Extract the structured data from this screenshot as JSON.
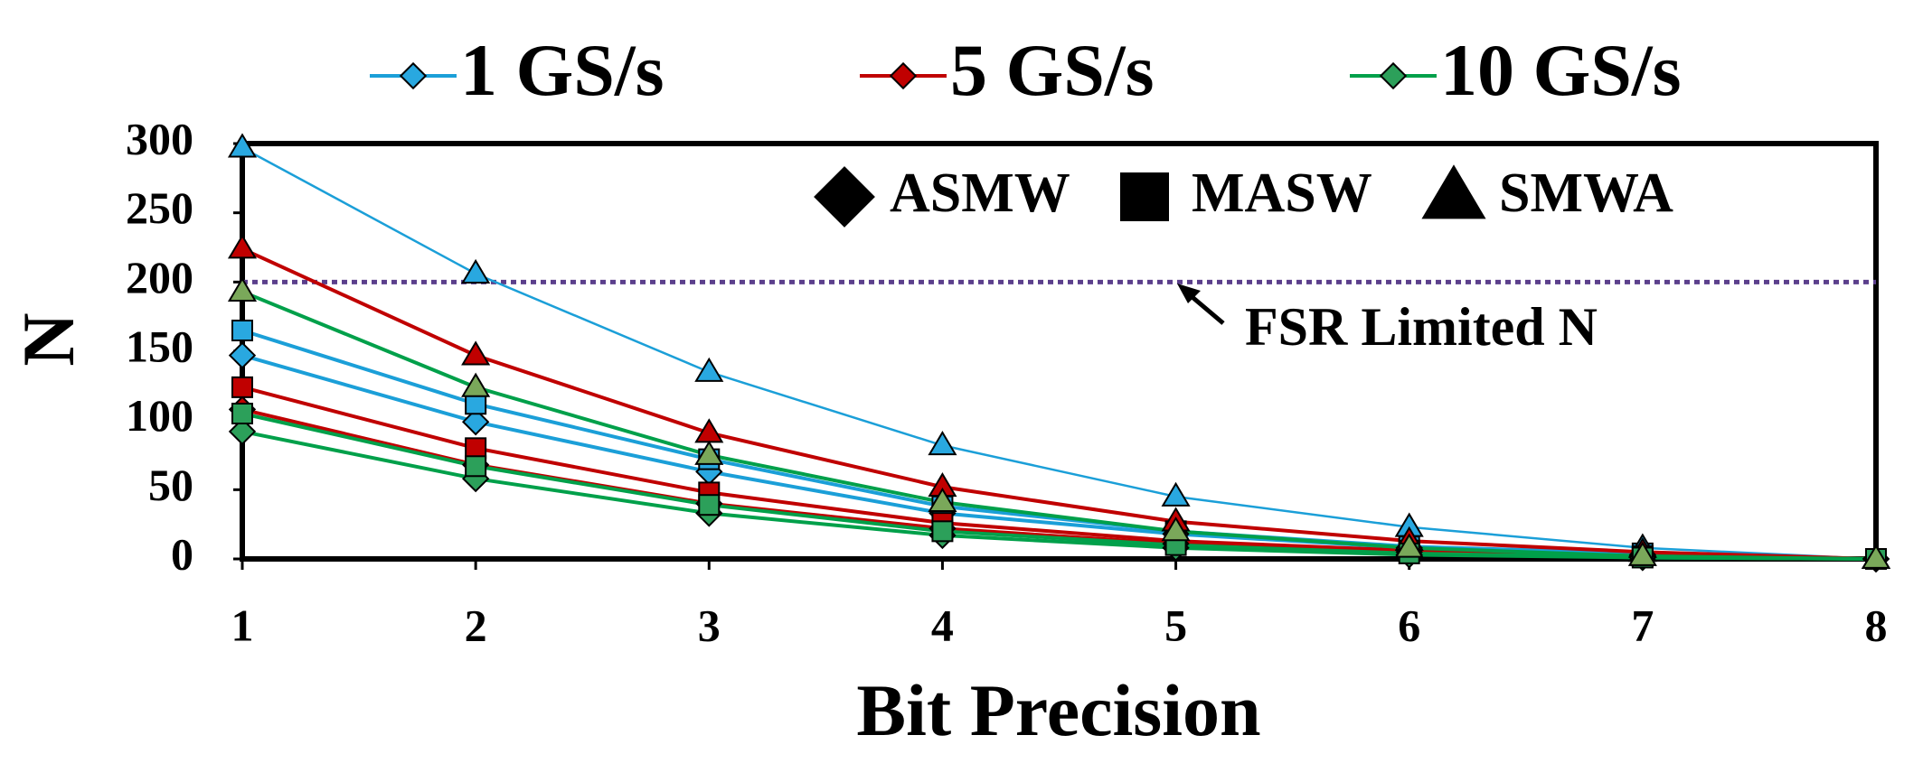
{
  "chart_data": {
    "type": "line",
    "x_label": "Bit Precision",
    "y_label": "N",
    "x": [
      1,
      2,
      3,
      4,
      5,
      6,
      7,
      8
    ],
    "xlim": [
      1,
      8
    ],
    "xticks": [
      1,
      2,
      3,
      4,
      5,
      6,
      7,
      8
    ],
    "ylim": [
      0,
      300
    ],
    "yticks": [
      0,
      50,
      100,
      150,
      200,
      250,
      300
    ],
    "rates": [
      {
        "name": "1 GS/s",
        "color": "#1b9fd8",
        "marker_color": "#29a8e0"
      },
      {
        "name": "5 GS/s",
        "color": "#c00000",
        "marker_color": "#c00000"
      },
      {
        "name": "10 GS/s",
        "color": "#00a04a",
        "marker_color": "#2ca05a"
      }
    ],
    "architectures": [
      {
        "name": "ASMW",
        "marker": "diamond"
      },
      {
        "name": "MASW",
        "marker": "square"
      },
      {
        "name": "SMWA",
        "marker": "triangle"
      }
    ],
    "series": [
      {
        "rate": 0,
        "architecture": 0,
        "values": [
          147,
          99,
          63,
          33,
          18,
          8,
          3,
          0
        ]
      },
      {
        "rate": 0,
        "architecture": 1,
        "values": [
          165,
          112,
          72,
          38,
          20,
          9,
          4,
          0
        ]
      },
      {
        "rate": 0,
        "architecture": 2,
        "values": [
          297,
          206,
          135,
          82,
          45,
          23,
          8,
          0
        ]
      },
      {
        "rate": 1,
        "architecture": 0,
        "values": [
          108,
          68,
          40,
          22,
          11,
          5,
          2,
          0
        ]
      },
      {
        "rate": 1,
        "architecture": 1,
        "values": [
          124,
          80,
          48,
          26,
          13,
          6,
          2,
          0
        ]
      },
      {
        "rate": 1,
        "architecture": 2,
        "values": [
          224,
          147,
          91,
          52,
          27,
          13,
          5,
          0
        ]
      },
      {
        "rate": 2,
        "architecture": 0,
        "values": [
          92,
          58,
          33,
          17,
          8,
          3,
          1,
          0
        ]
      },
      {
        "rate": 2,
        "architecture": 1,
        "values": [
          105,
          67,
          39,
          20,
          10,
          4,
          1,
          0
        ]
      },
      {
        "rate": 2,
        "architecture": 2,
        "values": [
          193,
          124,
          75,
          41,
          20,
          8,
          2,
          0
        ]
      }
    ],
    "hline": {
      "value": 200,
      "label": "FSR Limited N",
      "color": "#5b3f8c"
    }
  }
}
